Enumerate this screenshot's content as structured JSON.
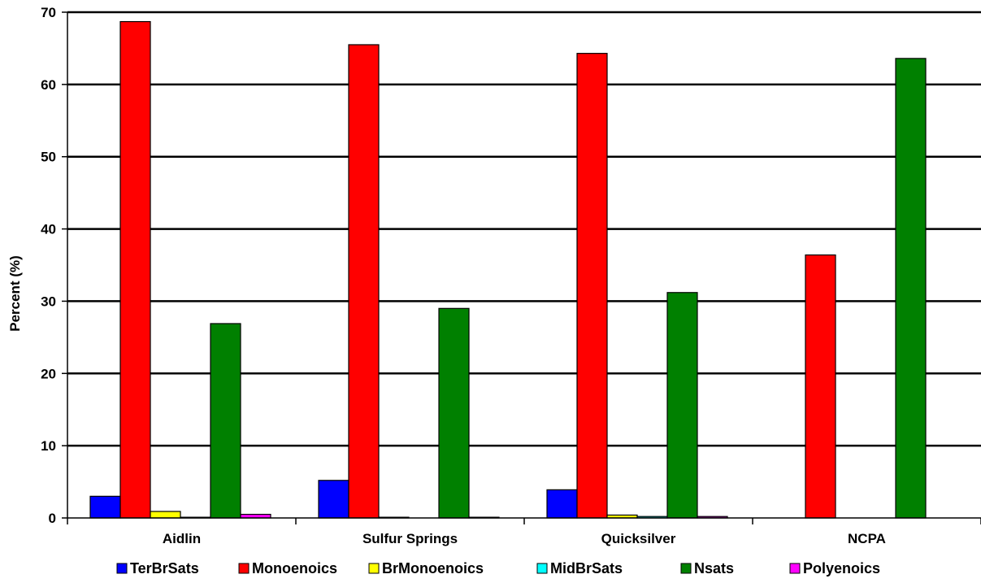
{
  "chart_data": {
    "type": "bar",
    "title": "",
    "xlabel": "",
    "ylabel": "Percent (%)",
    "ylim": [
      0,
      70
    ],
    "yticks": [
      0,
      10,
      20,
      30,
      40,
      50,
      60,
      70
    ],
    "grid": true,
    "legend_position": "bottom",
    "categories": [
      "Aidlin",
      "Sulfur Springs",
      "Quicksilver",
      "NCPA"
    ],
    "series": [
      {
        "name": "TerBrSats",
        "color": "#0000ff",
        "values": [
          3.0,
          5.2,
          3.9,
          0.0
        ]
      },
      {
        "name": "Monoenoics",
        "color": "#ff0000",
        "values": [
          68.7,
          65.5,
          64.3,
          36.4
        ]
      },
      {
        "name": "BrMonoenoics",
        "color": "#ffff00",
        "values": [
          0.9,
          0.1,
          0.4,
          0.0
        ]
      },
      {
        "name": "MidBrSats",
        "color": "#00ffff",
        "values": [
          0.1,
          0.0,
          0.2,
          0.0
        ]
      },
      {
        "name": "Nsats",
        "color": "#008000",
        "values": [
          26.9,
          29.0,
          31.2,
          63.6
        ]
      },
      {
        "name": "Polyenoics",
        "color": "#ff00ff",
        "values": [
          0.5,
          0.1,
          0.2,
          0.0
        ]
      }
    ]
  }
}
